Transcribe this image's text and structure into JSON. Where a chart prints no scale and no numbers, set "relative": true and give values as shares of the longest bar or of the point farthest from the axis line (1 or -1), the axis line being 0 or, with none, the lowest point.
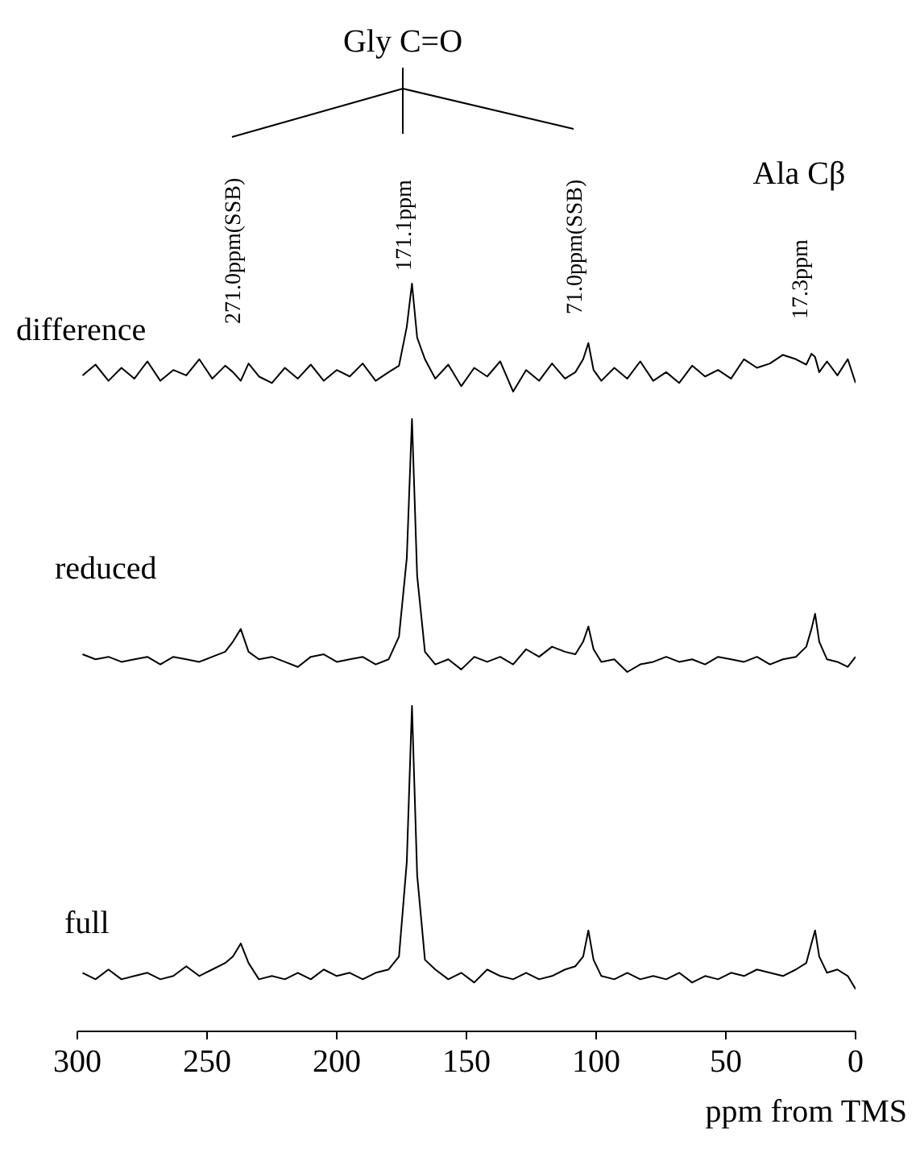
{
  "chart_data": [
    {
      "type": "line",
      "relative": true,
      "xlim": [
        300,
        0
      ],
      "tick_labels": false,
      "annotations": [
        "Gly C=O",
        "271.0ppm(SSB)",
        "171.1ppm",
        "71.0ppm(SSB)",
        "17.3ppm",
        "Ala Cβ"
      ],
      "x": [
        298,
        293,
        288,
        283,
        278,
        273,
        268,
        263,
        258,
        253,
        248,
        243,
        240,
        237,
        234,
        230,
        225,
        220,
        215,
        210,
        205,
        200,
        195,
        190,
        185,
        180,
        176,
        173,
        171,
        169,
        166,
        162,
        157,
        152,
        147,
        142,
        137,
        132,
        127,
        122,
        117,
        112,
        108,
        105,
        103,
        101,
        98,
        93,
        88,
        83,
        78,
        73,
        68,
        63,
        58,
        53,
        48,
        43,
        38,
        33,
        28,
        23,
        19,
        17,
        15.6,
        14,
        11,
        7,
        3,
        0
      ],
      "series": [
        {
          "name": "difference",
          "color": "#000000",
          "values": [
            0.15,
            0.25,
            0.1,
            0.22,
            0.12,
            0.28,
            0.1,
            0.2,
            0.15,
            0.3,
            0.12,
            0.24,
            0.18,
            0.1,
            0.26,
            0.14,
            0.08,
            0.22,
            0.12,
            0.25,
            0.1,
            0.2,
            0.14,
            0.26,
            0.1,
            0.18,
            0.24,
            0.6,
            1,
            0.5,
            0.3,
            0.12,
            0.25,
            0.05,
            0.22,
            0.14,
            0.28,
            0.0,
            0.2,
            0.1,
            0.26,
            0.12,
            0.18,
            0.3,
            0.45,
            0.2,
            0.1,
            0.22,
            0.12,
            0.28,
            0.1,
            0.18,
            0.08,
            0.24,
            0.14,
            0.2,
            0.12,
            0.3,
            0.22,
            0.26,
            0.34,
            0.3,
            0.25,
            0.35,
            0.32,
            0.18,
            0.28,
            0.15,
            0.3,
            0.08
          ]
        }
      ]
    },
    {
      "type": "line",
      "relative": true,
      "xlim": [
        300,
        0
      ],
      "tick_labels": false,
      "x": [
        298,
        293,
        288,
        283,
        278,
        273,
        268,
        263,
        258,
        253,
        248,
        243,
        240,
        237,
        234,
        230,
        225,
        220,
        215,
        210,
        205,
        200,
        195,
        190,
        185,
        180,
        176,
        173,
        171,
        169,
        166,
        162,
        157,
        152,
        147,
        142,
        137,
        132,
        127,
        122,
        117,
        112,
        108,
        105,
        103,
        101,
        98,
        93,
        88,
        83,
        78,
        73,
        68,
        63,
        58,
        53,
        48,
        43,
        38,
        33,
        28,
        23,
        19,
        17,
        15.6,
        14,
        11,
        7,
        3,
        0
      ],
      "series": [
        {
          "name": "reduced",
          "color": "#000000",
          "values": [
            0.07,
            0.05,
            0.06,
            0.04,
            0.05,
            0.06,
            0.03,
            0.06,
            0.05,
            0.04,
            0.06,
            0.08,
            0.12,
            0.17,
            0.08,
            0.05,
            0.06,
            0.04,
            0.02,
            0.06,
            0.07,
            0.04,
            0.05,
            0.06,
            0.03,
            0.05,
            0.14,
            0.45,
            1,
            0.38,
            0.08,
            0.03,
            0.05,
            0.01,
            0.06,
            0.04,
            0.06,
            0.03,
            0.09,
            0.06,
            0.1,
            0.08,
            0.07,
            0.12,
            0.18,
            0.09,
            0.04,
            0.05,
            0.0,
            0.03,
            0.04,
            0.06,
            0.04,
            0.05,
            0.03,
            0.06,
            0.05,
            0.04,
            0.06,
            0.03,
            0.05,
            0.06,
            0.1,
            0.17,
            0.23,
            0.12,
            0.05,
            0.04,
            0.02,
            0.06
          ]
        }
      ]
    },
    {
      "type": "line",
      "relative": true,
      "xlim": [
        300,
        0
      ],
      "xticks": [
        300,
        250,
        200,
        150,
        100,
        50,
        0
      ],
      "xlabel": "ppm from TMS",
      "tick_labels": "x",
      "x": [
        298,
        293,
        288,
        283,
        278,
        273,
        268,
        263,
        258,
        253,
        248,
        243,
        240,
        237,
        234,
        230,
        225,
        220,
        215,
        210,
        205,
        200,
        195,
        190,
        185,
        180,
        176,
        173,
        171,
        169,
        166,
        162,
        157,
        152,
        147,
        142,
        137,
        132,
        127,
        122,
        117,
        112,
        108,
        105,
        103,
        101,
        98,
        93,
        88,
        83,
        78,
        73,
        68,
        63,
        58,
        53,
        48,
        43,
        38,
        33,
        28,
        23,
        19,
        17,
        15.6,
        14,
        11,
        7,
        3,
        0
      ],
      "series": [
        {
          "name": "full",
          "color": "#000000",
          "values": [
            0.18,
            0.16,
            0.19,
            0.16,
            0.17,
            0.18,
            0.16,
            0.17,
            0.2,
            0.17,
            0.19,
            0.21,
            0.23,
            0.27,
            0.21,
            0.16,
            0.17,
            0.16,
            0.18,
            0.16,
            0.19,
            0.17,
            0.18,
            0.16,
            0.18,
            0.19,
            0.23,
            0.52,
            1,
            0.48,
            0.22,
            0.19,
            0.16,
            0.18,
            0.15,
            0.19,
            0.17,
            0.16,
            0.18,
            0.16,
            0.17,
            0.19,
            0.2,
            0.23,
            0.31,
            0.22,
            0.17,
            0.16,
            0.18,
            0.16,
            0.17,
            0.16,
            0.18,
            0.15,
            0.17,
            0.16,
            0.18,
            0.17,
            0.19,
            0.18,
            0.17,
            0.19,
            0.21,
            0.27,
            0.31,
            0.23,
            0.18,
            0.19,
            0.17,
            0.13
          ]
        }
      ]
    }
  ]
}
